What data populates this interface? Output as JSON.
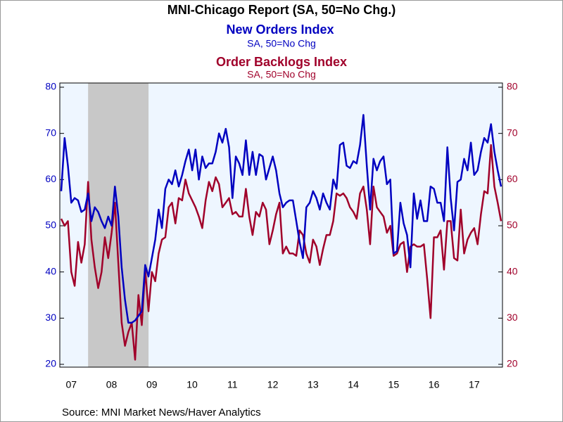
{
  "chart_data": {
    "type": "line",
    "title": "MNI-Chicago Report (SA, 50=No Chg.)",
    "source": "Source:  MNI Market News/Haver Analytics",
    "categories": [
      null,
      null,
      null,
      "07",
      null,
      null,
      null,
      null,
      null,
      null,
      null,
      null,
      null,
      null,
      null,
      "08",
      null,
      null,
      null,
      null,
      null,
      null,
      null,
      null,
      null,
      null,
      null,
      "09",
      null,
      null,
      null,
      null,
      null,
      null,
      null,
      null,
      null,
      null,
      null,
      "10",
      null,
      null,
      null,
      null,
      null,
      null,
      null,
      null,
      null,
      null,
      null,
      "11",
      null,
      null,
      null,
      null,
      null,
      null,
      null,
      null,
      null,
      null,
      null,
      "12",
      null,
      null,
      null,
      null,
      null,
      null,
      null,
      null,
      null,
      null,
      null,
      "13",
      null,
      null,
      null,
      null,
      null,
      null,
      null,
      null,
      null,
      null,
      null,
      "14",
      null,
      null,
      null,
      null,
      null,
      null,
      null,
      null,
      null,
      null,
      null,
      "15",
      null,
      null,
      null,
      null,
      null,
      null,
      null,
      null,
      null,
      null,
      null,
      "16",
      null,
      null,
      null,
      null,
      null,
      null,
      null,
      null,
      null,
      null,
      null,
      "17",
      null,
      null,
      null,
      null,
      null,
      null,
      null,
      null
    ],
    "shade": {
      "from": 8,
      "to": 26,
      "color": "#c8c8c8"
    },
    "series": [
      {
        "name": "New Orders Index",
        "subtitle": "SA, 50=No Chg",
        "color": "#0000c0",
        "axis": "y",
        "values": [
          57.5,
          69,
          63,
          55,
          56,
          55.5,
          53,
          53.5,
          57,
          51,
          54,
          53,
          51,
          49.5,
          52,
          50,
          58.5,
          52,
          41,
          34,
          29,
          29,
          29.5,
          30.5,
          31.5,
          41.5,
          39,
          43,
          47,
          53.5,
          49.5,
          58,
          60,
          59,
          62,
          58.5,
          61,
          64,
          66.5,
          62,
          66.5,
          60,
          65,
          62.5,
          63.5,
          63.5,
          66,
          70,
          68,
          71,
          67,
          56,
          65,
          63.5,
          61,
          68.5,
          61,
          66,
          61,
          65.5,
          65,
          60,
          62.5,
          65,
          62,
          57,
          54,
          55,
          55.5,
          55.5,
          51,
          46.5,
          43,
          54,
          55,
          57.5,
          56,
          53.5,
          57,
          55,
          53.5,
          60,
          58,
          67.5,
          68,
          63,
          62.5,
          64,
          63.5,
          67.5,
          74,
          63,
          53.5,
          64.5,
          62,
          64,
          65,
          59,
          60,
          44,
          44.5,
          55,
          50.5,
          48,
          41,
          57,
          51.5,
          55.5,
          51,
          51,
          58.5,
          58,
          55,
          55,
          51,
          67,
          56,
          49,
          59.5,
          60,
          64.5,
          62,
          68,
          61,
          62,
          66,
          69,
          68,
          72,
          66,
          62,
          58.5
        ]
      },
      {
        "name": "Order Backlogs Index",
        "subtitle": "SA, 50=No Chg",
        "color": "#a0002a",
        "axis": "y2",
        "values": [
          51.5,
          50,
          51,
          40,
          37,
          46.5,
          42,
          46,
          59.5,
          47,
          41,
          36.5,
          40,
          47.5,
          43,
          48.5,
          55,
          42,
          29,
          24,
          27,
          29,
          21,
          35,
          28.5,
          40.5,
          31.5,
          40,
          38,
          44,
          47,
          47.5,
          54,
          55,
          50.5,
          56,
          55.5,
          60,
          57,
          55.5,
          54,
          52,
          49.5,
          55.5,
          59.5,
          57.5,
          60.5,
          59,
          54,
          55,
          56,
          52.5,
          53,
          52,
          52,
          58,
          52,
          48,
          53,
          52,
          55,
          53.5,
          46,
          49,
          52.5,
          55,
          44,
          45.5,
          44,
          44,
          43.5,
          49,
          48,
          44,
          42,
          47,
          45.5,
          41.5,
          45,
          48,
          48,
          51,
          57,
          56.5,
          57,
          56,
          54,
          53,
          51.5,
          57,
          58.5,
          53.5,
          46,
          58.5,
          54,
          53,
          52,
          48.5,
          50,
          43.5,
          44,
          46,
          46.5,
          40,
          45.5,
          46,
          45.5,
          45.5,
          46,
          38.5,
          30,
          47.5,
          47.5,
          49,
          40.5,
          51,
          51,
          43,
          42.5,
          53.5,
          44,
          47,
          48.5,
          49.5,
          46,
          52.5,
          57.5,
          57,
          67.5,
          58.5,
          55,
          51
        ]
      }
    ],
    "ylim": [
      20,
      80
    ],
    "yticks": [
      20,
      30,
      40,
      50,
      60,
      70,
      80
    ],
    "y2lim": [
      20,
      80
    ],
    "y2ticks": [
      20,
      30,
      40,
      50,
      60,
      70,
      80
    ],
    "plot_background": "#eef6ff"
  }
}
